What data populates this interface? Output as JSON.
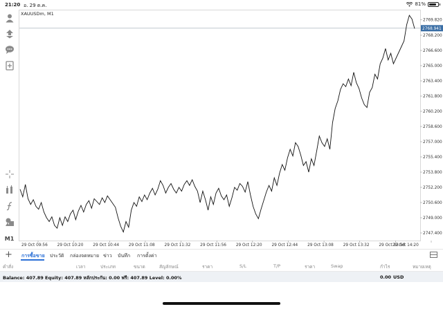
{
  "status_bar": {
    "time": "21:20",
    "date": "อ. 29 ต.ค.",
    "battery": "81%",
    "battery_level": 0.81
  },
  "left_toolbar": {
    "items": [
      {
        "name": "account-icon"
      },
      {
        "name": "trade-arrows-icon"
      },
      {
        "name": "chat-icon"
      },
      {
        "name": "new-order-icon"
      },
      {
        "name": "crosshair-icon"
      },
      {
        "name": "indicators-icon"
      },
      {
        "name": "function-icon"
      },
      {
        "name": "objects-icon"
      },
      {
        "name": "timeframe",
        "label": "M1"
      }
    ]
  },
  "chart": {
    "symbol": "XAUUSDm, M1",
    "current_price": "2768.941",
    "price_labels": [
      "2769.820",
      "2768.200",
      "2766.600",
      "2765.000",
      "2763.400",
      "2761.800",
      "2760.200",
      "2758.600",
      "2757.000",
      "2755.400",
      "2753.800",
      "2752.200",
      "2750.600",
      "2749.000",
      "2747.400"
    ],
    "time_labels": [
      "29 Oct 09:56",
      "29 Oct 10:20",
      "29 Oct 10:44",
      "29 Oct 11:08",
      "29 Oct 11:32",
      "29 Oct 11:56",
      "29 Oct 12:20",
      "29 Oct 12:44",
      "29 Oct 13:08",
      "29 Oct 13:32",
      "29 Oct 13:56",
      "29 Oct 14:20"
    ]
  },
  "chart_data": {
    "type": "line",
    "title": "XAUUSDm, M1",
    "ylim": [
      2746.6,
      2770.6
    ],
    "series": [
      {
        "values": [
          2752.0,
          2751.2,
          2752.5,
          2751.0,
          2750.4,
          2750.9,
          2750.2,
          2749.9,
          2750.6,
          2749.6,
          2749.0,
          2748.6,
          2749.1,
          2748.2,
          2747.9,
          2749.0,
          2748.2,
          2749.1,
          2748.6,
          2749.4,
          2749.8,
          2748.8,
          2749.7,
          2750.3,
          2749.6,
          2750.4,
          2750.8,
          2750.0,
          2751.0,
          2750.7,
          2750.4,
          2751.1,
          2750.6,
          2751.3,
          2750.9,
          2750.5,
          2750.1,
          2749.0,
          2748.1,
          2747.5,
          2748.6,
          2748.0,
          2749.8,
          2750.6,
          2750.2,
          2751.2,
          2750.7,
          2751.4,
          2750.9,
          2751.6,
          2752.1,
          2751.4,
          2752.0,
          2752.9,
          2752.4,
          2751.6,
          2752.2,
          2752.6,
          2752.0,
          2751.6,
          2752.2,
          2751.8,
          2752.5,
          2752.9,
          2752.4,
          2753.0,
          2752.3,
          2751.8,
          2750.6,
          2751.8,
          2750.9,
          2749.8,
          2751.2,
          2750.4,
          2751.6,
          2752.1,
          2751.3,
          2750.9,
          2751.4,
          2750.2,
          2751.1,
          2752.2,
          2751.9,
          2752.6,
          2752.3,
          2751.7,
          2752.8,
          2751.4,
          2750.2,
          2749.4,
          2748.9,
          2749.9,
          2750.8,
          2751.7,
          2752.4,
          2751.8,
          2753.2,
          2752.4,
          2753.7,
          2754.6,
          2754.0,
          2755.3,
          2756.2,
          2755.5,
          2756.9,
          2756.5,
          2755.6,
          2754.5,
          2754.9,
          2753.8,
          2755.2,
          2754.5,
          2756.0,
          2757.6,
          2756.9,
          2756.5,
          2757.3,
          2756.2,
          2759.0,
          2760.5,
          2761.3,
          2762.5,
          2763.1,
          2762.8,
          2763.6,
          2762.9,
          2764.3,
          2763.2,
          2762.6,
          2761.6,
          2760.9,
          2760.6,
          2762.2,
          2762.7,
          2764.1,
          2763.6,
          2765.2,
          2765.8,
          2766.8,
          2765.6,
          2766.3,
          2765.2,
          2765.8,
          2766.4,
          2767.0,
          2767.6,
          2769.3,
          2770.3,
          2769.9,
          2768.9
        ]
      }
    ]
  },
  "tabs": [
    {
      "label": "การซื้อขาย",
      "active": true
    },
    {
      "label": "ประวัติ"
    },
    {
      "label": "กล่องจดหมาย"
    },
    {
      "label": "ข่าว"
    },
    {
      "label": "บันทึก"
    },
    {
      "label": "การตั้งค่า"
    }
  ],
  "columns": [
    "คำสั่ง",
    "เวลา",
    "ประเภท",
    "ขนาด",
    "สัญลักษณ์",
    "ราคา",
    "S/L",
    "T/P",
    "ราคา",
    "Swap",
    "กำไร",
    "หมายเหตุ"
  ],
  "balance": {
    "text": "Balance: 407.89 Equity: 407.89 หลักประกัน: 0.00 ฟรี: 407.89 Level: 0.00%",
    "profit": "0.00",
    "currency": "USD"
  }
}
